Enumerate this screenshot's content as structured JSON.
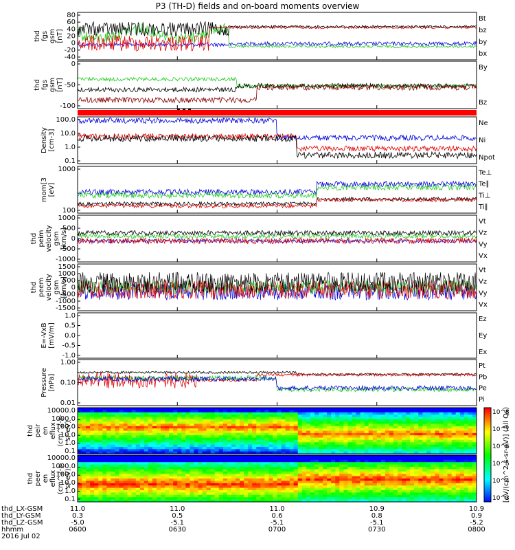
{
  "title": "P3 (TH-D) fields and on-board moments overview",
  "colors": {
    "black": "#000000",
    "red": "#e00000",
    "green": "#22cc22",
    "blue": "#0000dd",
    "darkred": "#8b0000",
    "orange": "#ff8800"
  },
  "chart_data": [
    {
      "type": "line",
      "ylabel_lines": [
        "thd",
        "fgs",
        "gsm",
        "[nT]"
      ],
      "y_ticks": [
        "80",
        "60",
        "40",
        "20",
        "0",
        "-20",
        "-40"
      ],
      "legend": [
        {
          "name": "Bt",
          "color": "black"
        },
        {
          "name": "bz",
          "color": "red"
        },
        {
          "name": "by",
          "color": "green"
        },
        {
          "name": "bx",
          "color": "blue"
        }
      ]
    },
    {
      "type": "line",
      "ylabel_lines": [
        "thd",
        "fgs",
        "gsm",
        "[nT]"
      ],
      "y_ticks": [
        "0",
        "-50",
        "-100"
      ],
      "legend": [
        {
          "name": "By",
          "color": "black"
        },
        {
          "name": "Bz",
          "color": "red"
        }
      ]
    },
    {
      "type": "bar",
      "label": "mode bar"
    },
    {
      "type": "line",
      "ylabel_lines": [
        "Density",
        "[cm-3]"
      ],
      "y_ticks": [
        "100.0",
        "10.0",
        "1.0",
        "0.1"
      ],
      "log": true,
      "legend": [
        {
          "name": "Ne",
          "color": "red"
        },
        {
          "name": "Ni",
          "color": "black"
        },
        {
          "name": "Npot",
          "color": "blue"
        }
      ]
    },
    {
      "type": "line",
      "ylabel_lines": [
        "mom[3",
        "[eV]"
      ],
      "y_ticks": [
        "1000",
        "100"
      ],
      "log": true,
      "legend": [
        {
          "name": "Te⊥",
          "color": "red"
        },
        {
          "name": "Te∥",
          "color": "black"
        },
        {
          "name": "Ti⊥",
          "color": "green"
        },
        {
          "name": "Ti∥",
          "color": "green"
        }
      ]
    },
    {
      "type": "line",
      "ylabel_lines": [
        "thd",
        "peim",
        "velocity",
        "gsm",
        "[km/s]"
      ],
      "y_ticks": [
        "1000",
        "500",
        "0",
        "-500",
        "-1000"
      ],
      "legend": [
        {
          "name": "Vt",
          "color": "black"
        },
        {
          "name": "Vz",
          "color": "red"
        },
        {
          "name": "Vy",
          "color": "green"
        },
        {
          "name": "Vx",
          "color": "blue"
        }
      ]
    },
    {
      "type": "line",
      "ylabel_lines": [
        "thd",
        "peem",
        "velocity",
        "gsm",
        "[km/s]"
      ],
      "y_ticks": [
        "1500",
        "1000",
        "500",
        "0",
        "-500",
        "-1000",
        "-1500"
      ],
      "legend": [
        {
          "name": "Vt",
          "color": "black"
        },
        {
          "name": "Vz",
          "color": "red"
        },
        {
          "name": "Vy",
          "color": "green"
        },
        {
          "name": "Vx",
          "color": "blue"
        }
      ]
    },
    {
      "type": "line",
      "ylabel_lines": [
        "E=-VxB",
        "[mV/m]"
      ],
      "y_ticks": [
        "1.0",
        "0.5",
        "0.0",
        "-0.5",
        "-1.0"
      ],
      "legend": [
        {
          "name": "Ez",
          "color": "red"
        },
        {
          "name": "Ey",
          "color": "green"
        },
        {
          "name": "Ex",
          "color": "blue"
        }
      ]
    },
    {
      "type": "line",
      "ylabel_lines": [
        "Pressure",
        "[nPa]"
      ],
      "y_ticks": [
        "1.00",
        "0.10",
        "0.01"
      ],
      "log": true,
      "legend": [
        {
          "name": "Pt",
          "color": "black"
        },
        {
          "name": "Pb",
          "color": "red"
        },
        {
          "name": "Pe",
          "color": "green"
        },
        {
          "name": "Pi",
          "color": "blue"
        }
      ]
    },
    {
      "type": "heatmap",
      "ylabel_lines": [
        "thd",
        "peir",
        "en",
        "eflux",
        "(cm^2-s-",
        "sr-eV)"
      ],
      "y_ticks": [
        "10000.0",
        "1000.0",
        "100.0",
        "10.0",
        "1.0",
        "0.1"
      ]
    },
    {
      "type": "heatmap",
      "ylabel_lines": [
        "thd",
        "peer",
        "en",
        "eflux",
        "(cm^2-s-",
        "sr-eV)"
      ],
      "y_ticks": [
        "10000.0",
        "1000.0",
        "100.0",
        "10.0",
        "1.0",
        "0.1"
      ]
    }
  ],
  "colorbar": {
    "ticks": [
      "10^8",
      "10^7",
      "10^6",
      "10^5",
      "10^4",
      "10^3"
    ],
    "label": "[eV/(cm^2-s-sr-eV)] (All Qs)"
  },
  "x_axis": {
    "rows": [
      {
        "label": "thd_LX-GSM",
        "values": [
          "11.0",
          "11.0",
          "11.0",
          "10.9",
          "10.9"
        ]
      },
      {
        "label": "thd_LY-GSM",
        "values": [
          "0.3",
          "0.5",
          "0.6",
          "0.8",
          "0.9"
        ]
      },
      {
        "label": "thd_LZ-GSM",
        "values": [
          "-5.0",
          "-5.1",
          "-5.1",
          "-5.1",
          "-5.2"
        ]
      },
      {
        "label": "hhmm",
        "values": [
          "0600",
          "0630",
          "0700",
          "0730",
          "0800"
        ]
      }
    ],
    "date": "2016 Jul 02"
  }
}
